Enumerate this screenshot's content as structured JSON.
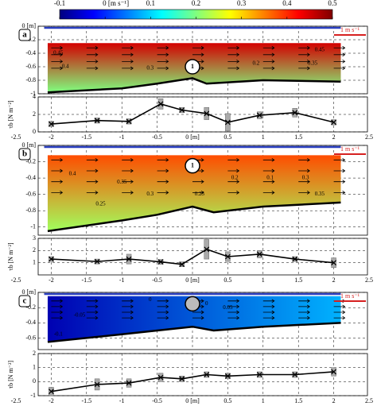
{
  "chart_data": [
    {
      "type": "colorbar",
      "lim": [
        -0.1,
        0.5
      ],
      "ticks": [
        -0.1,
        {
          "value": 0,
          "label": "0 [m s⁻¹]"
        },
        0.1,
        0.2,
        0.3,
        0.4,
        0.5
      ],
      "colors": [
        "#00007f",
        "#0000ff",
        "#007fff",
        "#00ffff",
        "#7fff7f",
        "#ffff00",
        "#ff7f00",
        "#ff0000",
        "#7f0000"
      ]
    },
    {
      "type": "contour",
      "panel_label": "a",
      "xlim": [
        -2.5,
        2.5
      ],
      "ylim": [
        -1,
        0
      ],
      "yticks": [
        {
          "value": 0,
          "label": "0 [m]"
        },
        -0.2,
        -0.4,
        -0.6,
        -0.8,
        -1
      ],
      "xgrid": [
        -2,
        -1.5,
        -1,
        -0.5,
        0,
        0.5,
        1,
        1.5,
        2
      ],
      "field_top": 0.45,
      "field_bottom": 0.2,
      "top_depth": -0.25,
      "bed_x": [
        -2.05,
        -1,
        -0.5,
        0,
        0.2,
        1,
        2.1
      ],
      "bed_depth": [
        -0.98,
        -0.92,
        -0.85,
        -0.77,
        -0.85,
        -0.8,
        -0.82
      ],
      "contour_labels": [
        0.45,
        0.4,
        0.3,
        0.2,
        0.35,
        0.45
      ],
      "cylinder_label": "1",
      "scale_label": "1 m s⁻¹"
    },
    {
      "type": "line",
      "xlim": [
        -2.5,
        2.5
      ],
      "ylim": [
        0,
        4
      ],
      "yticks": [
        0,
        2,
        4
      ],
      "xticks": [
        -2.5,
        -2,
        -1.5,
        -1,
        -0.5,
        {
          "value": 0,
          "label": "0 [m]"
        },
        0.5,
        1,
        1.5,
        2,
        2.5
      ],
      "ylabel": "τb [N m⁻²]",
      "x": [
        -2,
        -1.35,
        -0.9,
        -0.45,
        -0.15,
        0.2,
        0.5,
        0.95,
        1.45,
        2
      ],
      "values": [
        0.9,
        1.3,
        1.2,
        3.2,
        2.5,
        2.1,
        1.1,
        1.9,
        2.2,
        1.1
      ],
      "errors": [
        0.3,
        0.3,
        0.3,
        0.6,
        0.3,
        0.7,
        1.0,
        0.4,
        0.5,
        0.3
      ]
    },
    {
      "type": "contour",
      "panel_label": "b",
      "xlim": [
        -2.5,
        2.5
      ],
      "ylim": [
        -1.1,
        0
      ],
      "yticks": [
        {
          "value": 0,
          "label": "0 [m]"
        },
        -0.2,
        -0.4,
        -0.6,
        -0.8,
        -1
      ],
      "xgrid": [
        -2,
        -1.5,
        -1,
        -0.5,
        0,
        0.5,
        1,
        1.5,
        2
      ],
      "field_top": 0.38,
      "field_bottom": 0.22,
      "top_depth": -0.12,
      "bed_x": [
        -2.05,
        -1,
        -0.5,
        0,
        0.3,
        1,
        2.1
      ],
      "bed_depth": [
        -1.05,
        -0.92,
        -0.85,
        -0.75,
        -0.82,
        -0.75,
        -0.7
      ],
      "contour_labels": [
        0.4,
        0.35,
        0.3,
        0.25,
        0.25,
        0.2,
        0.1,
        0.3,
        0.35
      ],
      "cylinder_label": "1",
      "scale_label": "1 m s⁻¹"
    },
    {
      "type": "line",
      "xlim": [
        -2.5,
        2.5
      ],
      "ylim": [
        0,
        3
      ],
      "yticks": [
        1,
        2,
        3
      ],
      "xticks": [
        -2.5,
        -2,
        -1.5,
        -1,
        -0.5,
        {
          "value": 0,
          "label": "0 [m]"
        },
        0.5,
        1,
        1.5,
        2,
        2.5
      ],
      "ylabel": "τb [N m⁻²]",
      "x": [
        -2,
        -1.35,
        -0.9,
        -0.45,
        -0.15,
        0.2,
        0.5,
        0.95,
        1.45,
        2
      ],
      "values": [
        1.3,
        1.1,
        1.3,
        1.07,
        0.87,
        2.1,
        1.5,
        1.7,
        1.3,
        1.0
      ],
      "errors": [
        0.2,
        0.2,
        0.4,
        0.2,
        0.2,
        0.8,
        0.4,
        0.3,
        0.2,
        0.4
      ]
    },
    {
      "type": "contour",
      "panel_label": "c",
      "xlim": [
        -2.5,
        2.5
      ],
      "ylim": [
        -0.75,
        0
      ],
      "yticks": [
        {
          "value": 0,
          "label": "0 [m]"
        },
        -0.2,
        -0.4,
        -0.6
      ],
      "xgrid": [
        -2,
        -1.5,
        -1,
        -0.5,
        0,
        0.5,
        1,
        1.5,
        2
      ],
      "field_top": -0.07,
      "field_bottom": 0.08,
      "top_depth": -0.05,
      "bed_x": [
        -2.05,
        -1,
        -0.5,
        0,
        0.3,
        1,
        2.1
      ],
      "bed_depth": [
        -0.65,
        -0.55,
        -0.5,
        -0.45,
        -0.5,
        -0.45,
        -0.4
      ],
      "contour_labels": [
        0,
        -0.05,
        -0.1,
        0.05,
        0
      ],
      "scale_label": "1 m s⁻¹"
    },
    {
      "type": "line",
      "xlim": [
        -2.5,
        2.5
      ],
      "ylim": [
        -1,
        2
      ],
      "yticks": [
        -1,
        0,
        1,
        2
      ],
      "xticks": [
        -2.5,
        -2,
        -1.5,
        -1,
        -0.5,
        {
          "value": 0,
          "label": "0 [m]"
        },
        0.5,
        1,
        1.5,
        2,
        2.5
      ],
      "ylabel": "τb [N m⁻²]",
      "x": [
        -2,
        -1.35,
        -0.9,
        -0.45,
        -0.15,
        0.2,
        0.5,
        0.95,
        1.45,
        2
      ],
      "values": [
        -0.7,
        -0.2,
        -0.1,
        0.3,
        0.2,
        0.5,
        0.4,
        0.5,
        0.5,
        0.7
      ],
      "errors": [
        0.3,
        0.4,
        0.3,
        0.3,
        0.2,
        0.2,
        0.2,
        0.2,
        0.2,
        0.3
      ]
    }
  ]
}
